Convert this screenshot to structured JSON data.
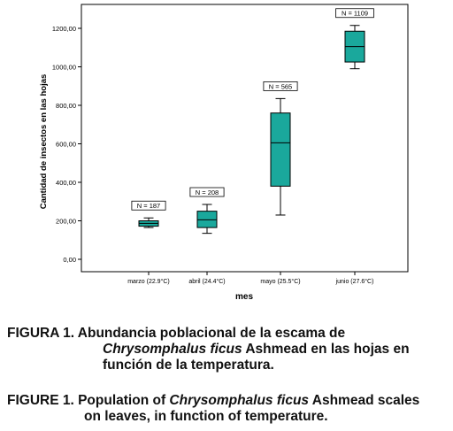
{
  "chart_data": {
    "type": "boxplot",
    "xlabel": "mes",
    "ylabel": "Cantidad de insectos en las hojas",
    "ylim": [
      -60,
      1330
    ],
    "yticks": [
      0,
      200,
      400,
      600,
      800,
      1000,
      1200
    ],
    "ytick_labels": [
      "0,00",
      "200,00",
      "400,00",
      "600,00",
      "800,00",
      "1000,00",
      "1200,00"
    ],
    "grid": false,
    "box_color": "#1aa89c",
    "categories": [
      "marzo (22.9°C)",
      "abril (24.4°C)",
      "mayo (25.5°C)",
      "junio (27.6°C)"
    ],
    "boxes": [
      {
        "whisker_low": 165,
        "q1": 172,
        "median": 187,
        "q3": 200,
        "whisker_high": 215,
        "n_label": "N = 187"
      },
      {
        "whisker_low": 135,
        "q1": 165,
        "median": 205,
        "q3": 250,
        "whisker_high": 285,
        "n_label": "N = 208"
      },
      {
        "whisker_low": 230,
        "q1": 380,
        "median": 605,
        "q3": 760,
        "whisker_high": 835,
        "n_label": "N = 565"
      },
      {
        "whisker_low": 990,
        "q1": 1025,
        "median": 1105,
        "q3": 1185,
        "whisker_high": 1215,
        "n_label": "N = 1109"
      }
    ]
  },
  "caption_es": {
    "lead": "FIGURA 1. Abundancia poblacional de la escama de",
    "species": "Chrysomphalus ficus",
    "rest1": " Ashmead en las hojas en",
    "rest2": "función de la temperatura."
  },
  "caption_en": {
    "lead": "FIGURE 1. Population of ",
    "species": "Chrysomphalus ficus",
    "rest1": " Ashmead scales",
    "rest2": "on leaves, in function of temperature."
  }
}
